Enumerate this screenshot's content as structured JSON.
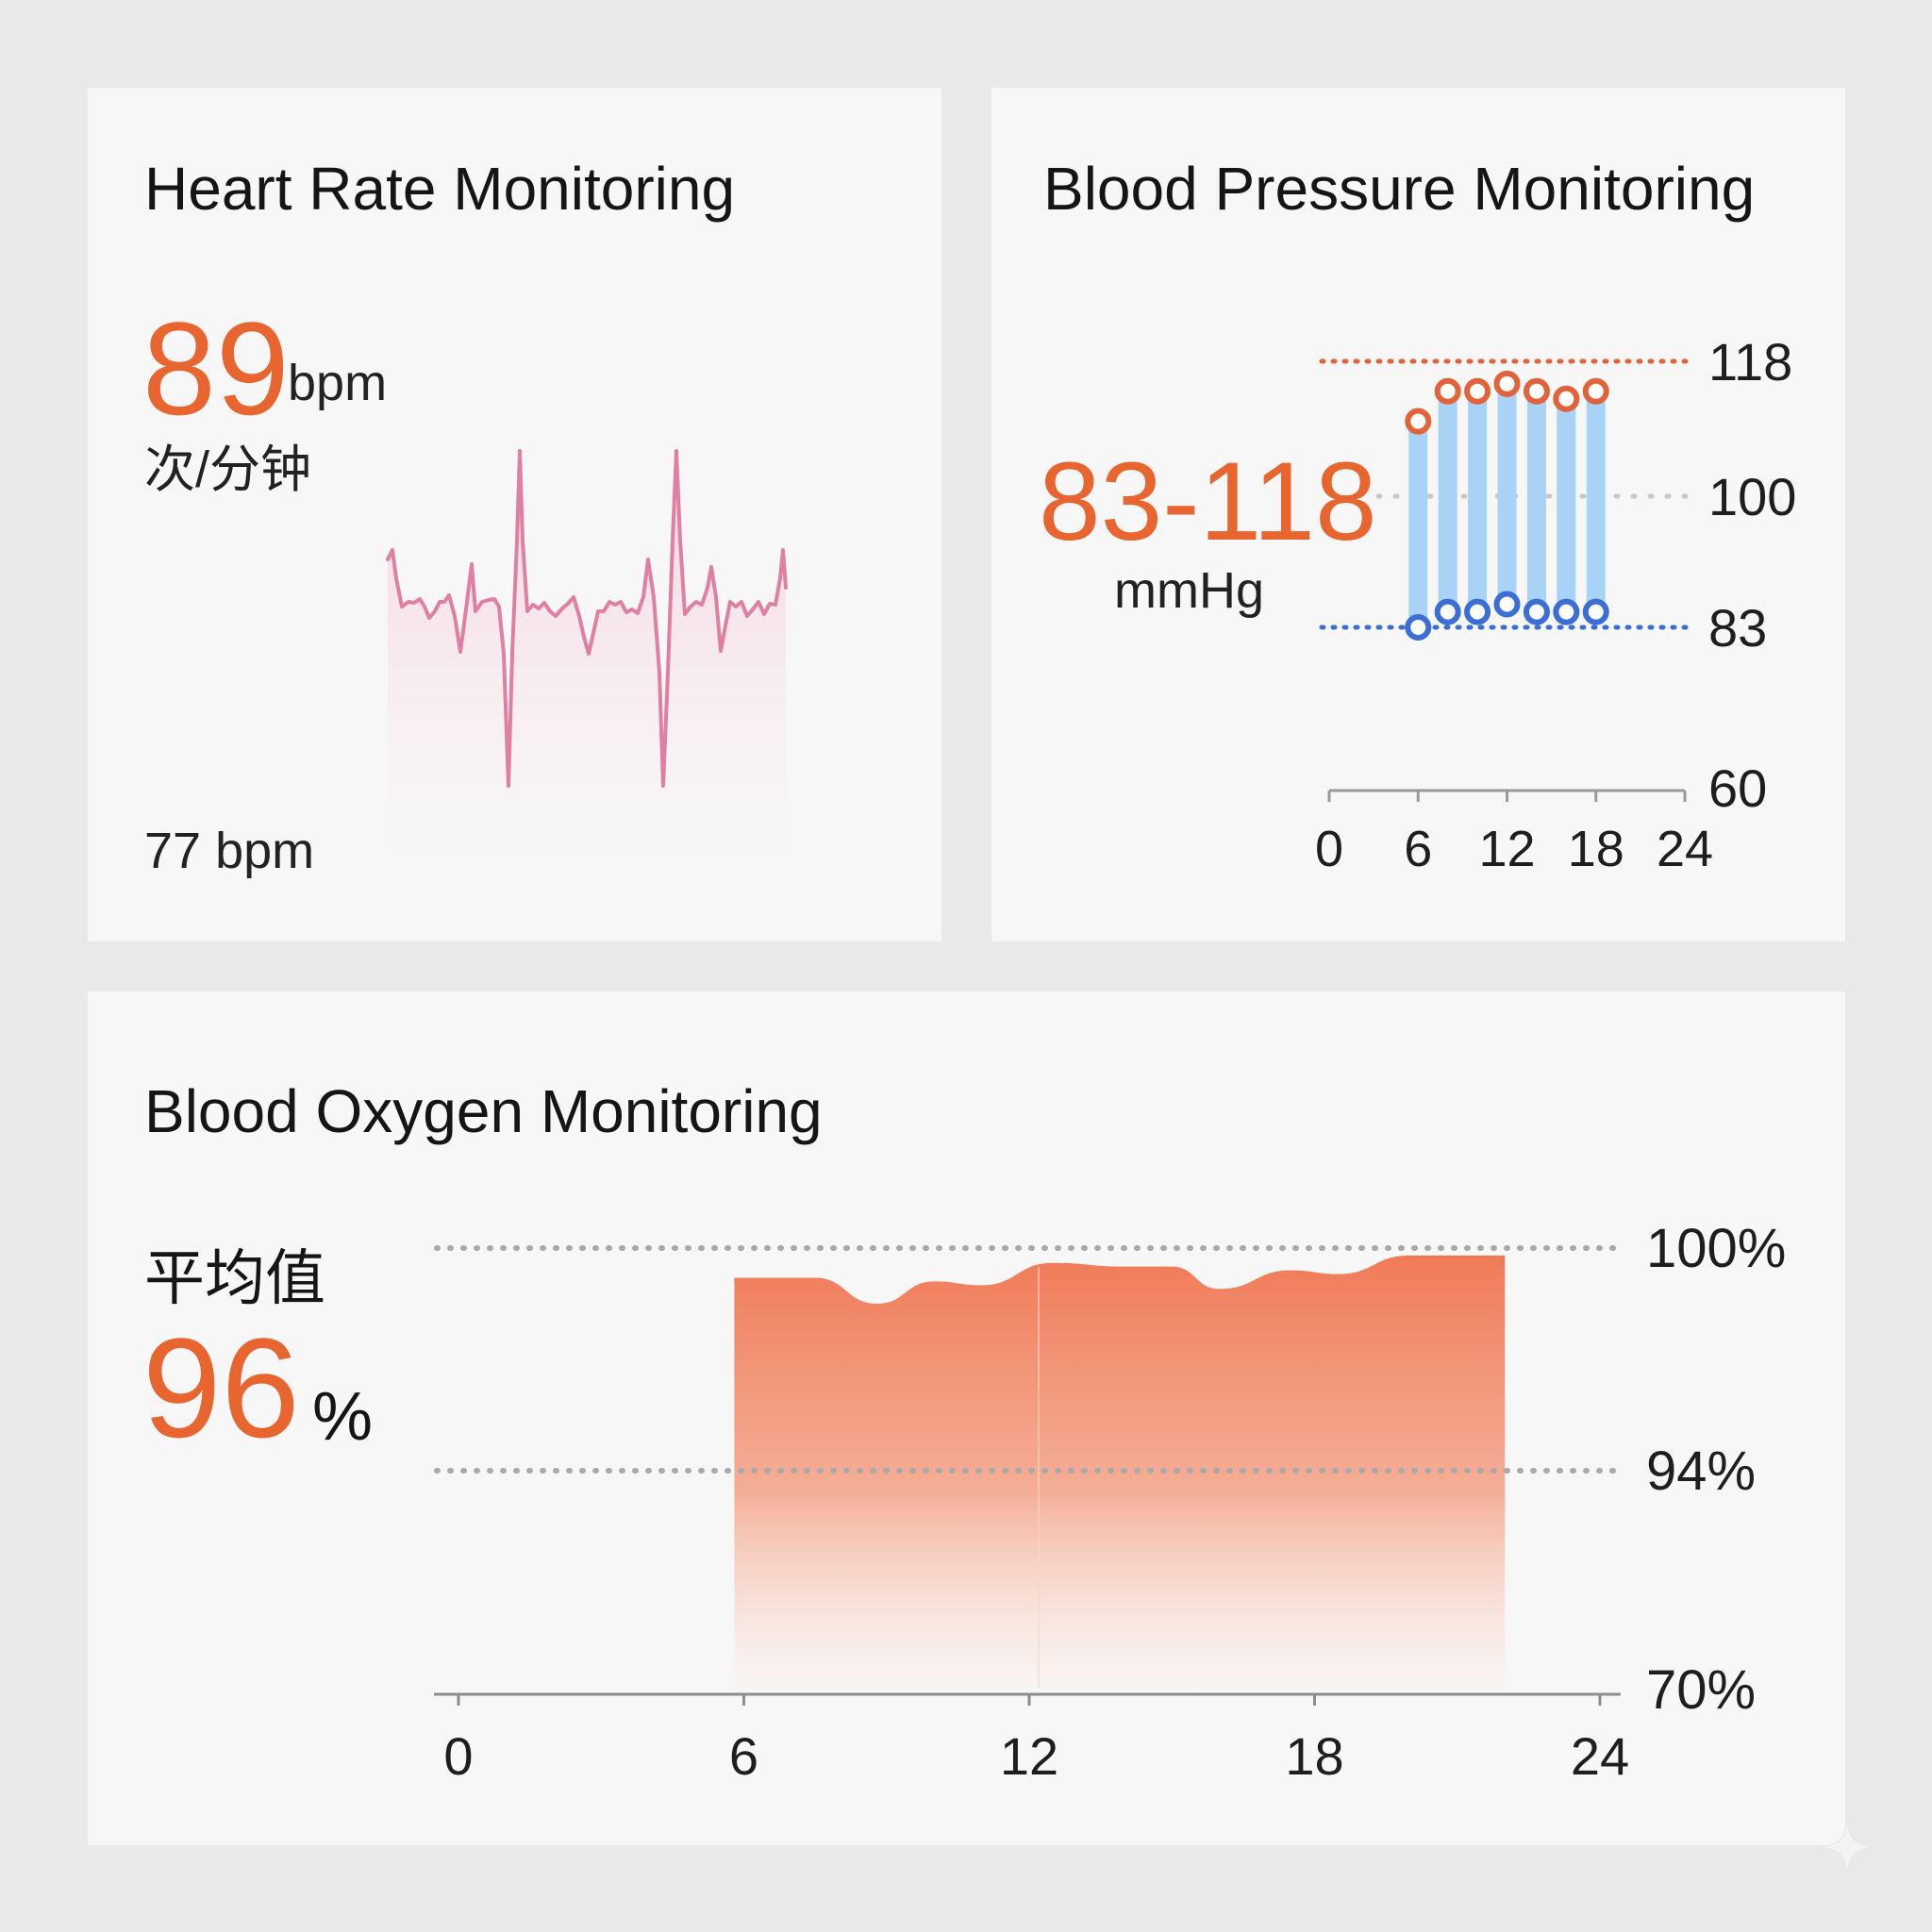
{
  "heart_rate": {
    "title": "Heart Rate Monitoring",
    "value": "89",
    "unit": "bpm",
    "unit_cn": "次/分钟",
    "footer": "77 bpm",
    "line_color": "#df7fa3"
  },
  "blood_pressure": {
    "title": "Blood Pressure Monitoring",
    "value": "83-118",
    "unit": "mmHg",
    "ref_high_label": "118",
    "ref_mid_label": "100",
    "ref_low_label": "83",
    "axis_min_label": "60",
    "colors": {
      "high": "#e2623a",
      "low": "#3b6fd6",
      "bar": "#a8d2f6"
    }
  },
  "blood_oxygen": {
    "title": "Blood Oxygen Monitoring",
    "avg_label": "平均值",
    "value": "96",
    "unit": "%",
    "color": "#f07f5e"
  },
  "chart_data": [
    {
      "type": "line",
      "title": "Heart Rate Monitoring",
      "note": "ECG-like waveform, no axes shown"
    },
    {
      "type": "bar",
      "title": "Blood Pressure Monitoring",
      "x_ticks": [
        "0",
        "6",
        "12",
        "18",
        "24"
      ],
      "y_ticks": [
        "60",
        "83",
        "100",
        "118"
      ],
      "xlim": [
        0,
        24
      ],
      "ylim": [
        60,
        125
      ],
      "series": [
        {
          "name": "systolic",
          "x": [
            6,
            8,
            10,
            12,
            14,
            16,
            18
          ],
          "values": [
            110,
            114,
            114,
            115,
            114,
            113,
            114
          ]
        },
        {
          "name": "diastolic",
          "x": [
            6,
            8,
            10,
            12,
            14,
            16,
            18
          ],
          "values": [
            83,
            85,
            85,
            86,
            85,
            85,
            85
          ]
        }
      ]
    },
    {
      "type": "area",
      "title": "Blood Oxygen Monitoring",
      "x_ticks": [
        "0",
        "6",
        "12",
        "18",
        "24"
      ],
      "y_ticks": [
        "70%",
        "94%",
        "100%"
      ],
      "xlim": [
        0,
        24
      ],
      "x": [
        5.8,
        7.5,
        8.8,
        10,
        11,
        12.5,
        14,
        15,
        16,
        17.5,
        18.5,
        20,
        21,
        22
      ],
      "values": [
        99.2,
        99.2,
        98.5,
        99.1,
        99.0,
        99.6,
        99.5,
        99.5,
        98.9,
        99.4,
        99.3,
        99.8,
        99.8,
        99.8
      ]
    }
  ]
}
